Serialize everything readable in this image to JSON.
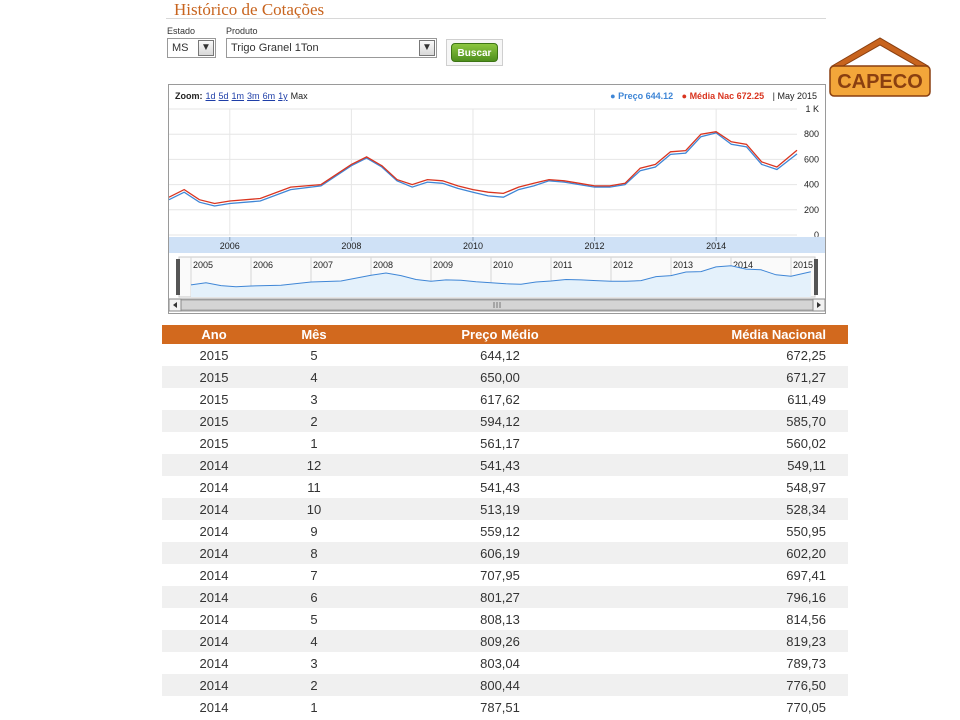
{
  "page": {
    "title": "Histórico de Cotações"
  },
  "filters": {
    "estado_label": "Estado",
    "estado_value": "MS",
    "produto_label": "Produto",
    "produto_value": "Trigo Granel 1Ton",
    "submit_label": "Buscar"
  },
  "logo": {
    "text": "CAPECO"
  },
  "chart": {
    "zoom_label": "Zoom:",
    "zoom_options": [
      "1d",
      "5d",
      "1m",
      "3m",
      "6m",
      "1y",
      "Max"
    ],
    "legend_preco": "Preço 644.12",
    "legend_media": "Média Nac 672.25",
    "legend_date": "May 2015",
    "colors": {
      "preco": "#3f86d6",
      "media": "#d9341f",
      "axis_band": "#cfe1f6",
      "navigator_fill": "#e4f1fb"
    }
  },
  "chart_data": {
    "type": "line",
    "y_ticks": [
      "1 K",
      "800",
      "600",
      "400",
      "200",
      "0"
    ],
    "x_ticks": [
      "2006",
      "2008",
      "2010",
      "2012",
      "2014"
    ],
    "navigator_years": [
      "2005",
      "2006",
      "2007",
      "2008",
      "2009",
      "2010",
      "2011",
      "2012",
      "2013",
      "2014",
      "2015"
    ],
    "ylim": [
      0,
      1000
    ],
    "x": [
      2005.0,
      2005.25,
      2005.5,
      2005.75,
      2006.0,
      2006.5,
      2007.0,
      2007.5,
      2008.0,
      2008.25,
      2008.5,
      2008.75,
      2009.0,
      2009.25,
      2009.5,
      2009.75,
      2010.0,
      2010.25,
      2010.5,
      2010.75,
      2011.0,
      2011.25,
      2011.5,
      2011.75,
      2012.0,
      2012.25,
      2012.5,
      2012.75,
      2013.0,
      2013.25,
      2013.5,
      2013.75,
      2014.0,
      2014.25,
      2014.5,
      2014.75,
      2015.0,
      2015.33
    ],
    "series": [
      {
        "name": "Preço",
        "values": [
          280,
          340,
          260,
          230,
          250,
          270,
          360,
          390,
          550,
          610,
          540,
          430,
          380,
          420,
          410,
          370,
          340,
          310,
          300,
          360,
          390,
          430,
          420,
          400,
          380,
          380,
          400,
          510,
          540,
          640,
          650,
          780,
          810,
          720,
          700,
          560,
          520,
          644
        ]
      },
      {
        "name": "Média Nac",
        "values": [
          300,
          360,
          280,
          250,
          270,
          290,
          380,
          400,
          560,
          620,
          550,
          440,
          400,
          440,
          430,
          390,
          360,
          340,
          330,
          380,
          410,
          440,
          430,
          410,
          390,
          390,
          410,
          530,
          560,
          660,
          670,
          800,
          820,
          740,
          720,
          580,
          540,
          672
        ]
      }
    ]
  },
  "table": {
    "headers": [
      "Ano",
      "Mês",
      "Preço Médio",
      "Média Nacional"
    ],
    "rows": [
      [
        "2015",
        "5",
        "644,12",
        "672,25"
      ],
      [
        "2015",
        "4",
        "650,00",
        "671,27"
      ],
      [
        "2015",
        "3",
        "617,62",
        "611,49"
      ],
      [
        "2015",
        "2",
        "594,12",
        "585,70"
      ],
      [
        "2015",
        "1",
        "561,17",
        "560,02"
      ],
      [
        "2014",
        "12",
        "541,43",
        "549,11"
      ],
      [
        "2014",
        "11",
        "541,43",
        "548,97"
      ],
      [
        "2014",
        "10",
        "513,19",
        "528,34"
      ],
      [
        "2014",
        "9",
        "559,12",
        "550,95"
      ],
      [
        "2014",
        "8",
        "606,19",
        "602,20"
      ],
      [
        "2014",
        "7",
        "707,95",
        "697,41"
      ],
      [
        "2014",
        "6",
        "801,27",
        "796,16"
      ],
      [
        "2014",
        "5",
        "808,13",
        "814,56"
      ],
      [
        "2014",
        "4",
        "809,26",
        "819,23"
      ],
      [
        "2014",
        "3",
        "803,04",
        "789,73"
      ],
      [
        "2014",
        "2",
        "800,44",
        "776,50"
      ],
      [
        "2014",
        "1",
        "787,51",
        "770,05"
      ]
    ]
  }
}
